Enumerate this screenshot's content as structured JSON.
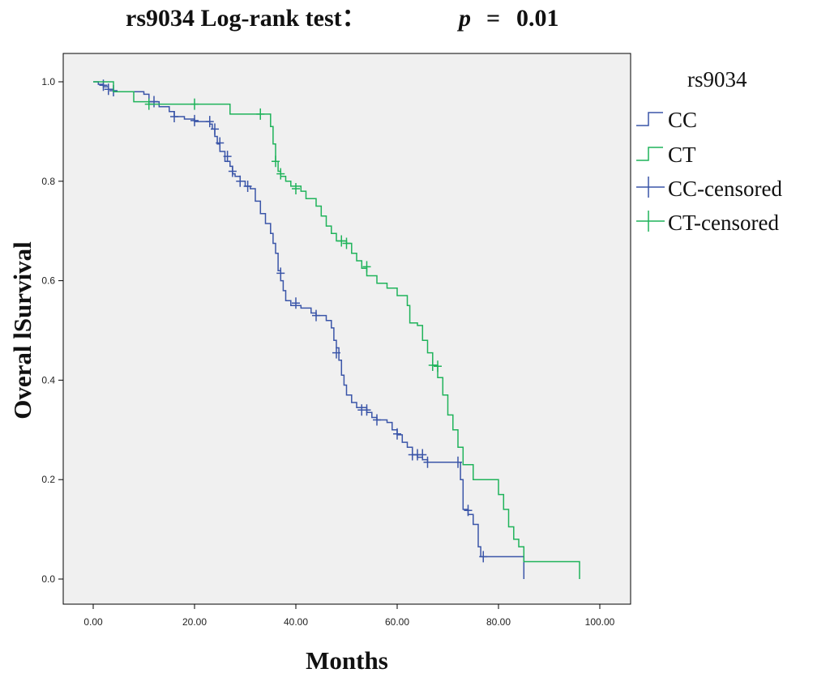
{
  "title": {
    "main": "rs9034 Log-rank test：",
    "p_symbol": "p",
    "p_equals": "=",
    "p_value": "0.01"
  },
  "chart_data": {
    "type": "line",
    "subtype": "kaplan-meier step",
    "xlabel": "Months",
    "ylabel": "Overal lSurvival",
    "xlim": [
      0,
      100
    ],
    "ylim": [
      0,
      1
    ],
    "x_ticks": [
      "0.00",
      "20.00",
      "40.00",
      "60.00",
      "80.00",
      "100.00"
    ],
    "y_ticks": [
      "0.0",
      "0.2",
      "0.4",
      "0.6",
      "0.8",
      "1.0"
    ],
    "grid": false,
    "legend_position": "right",
    "legend_title": "rs9034",
    "legend": [
      "CC",
      "CT",
      "CC-censored",
      "CT-censored"
    ],
    "colors": {
      "CC": "#3a55a8",
      "CT": "#1fb35a",
      "plot_bg": "#f0f0f0"
    },
    "series": [
      {
        "name": "CC",
        "steps": [
          [
            0,
            1.0
          ],
          [
            1,
            0.995
          ],
          [
            2,
            0.99
          ],
          [
            3,
            0.985
          ],
          [
            4,
            0.98
          ],
          [
            6,
            0.98
          ],
          [
            8,
            0.98
          ],
          [
            10,
            0.975
          ],
          [
            11,
            0.96
          ],
          [
            13,
            0.95
          ],
          [
            15,
            0.94
          ],
          [
            16,
            0.93
          ],
          [
            18,
            0.925
          ],
          [
            20,
            0.92
          ],
          [
            22,
            0.92
          ],
          [
            23,
            0.915
          ],
          [
            23.5,
            0.905
          ],
          [
            24,
            0.89
          ],
          [
            24.5,
            0.875
          ],
          [
            25,
            0.86
          ],
          [
            26,
            0.84
          ],
          [
            27,
            0.83
          ],
          [
            27.5,
            0.815
          ],
          [
            28,
            0.81
          ],
          [
            29,
            0.8
          ],
          [
            30,
            0.79
          ],
          [
            31,
            0.785
          ],
          [
            32,
            0.76
          ],
          [
            33,
            0.735
          ],
          [
            34,
            0.715
          ],
          [
            35,
            0.695
          ],
          [
            35.5,
            0.675
          ],
          [
            36,
            0.655
          ],
          [
            36.5,
            0.62
          ],
          [
            37,
            0.6
          ],
          [
            37.5,
            0.58
          ],
          [
            38,
            0.56
          ],
          [
            39,
            0.55
          ],
          [
            41,
            0.545
          ],
          [
            43,
            0.535
          ],
          [
            44,
            0.53
          ],
          [
            46,
            0.52
          ],
          [
            47,
            0.505
          ],
          [
            47.5,
            0.48
          ],
          [
            48,
            0.465
          ],
          [
            48.5,
            0.44
          ],
          [
            49,
            0.41
          ],
          [
            49.5,
            0.39
          ],
          [
            50,
            0.37
          ],
          [
            51,
            0.355
          ],
          [
            52,
            0.345
          ],
          [
            54,
            0.335
          ],
          [
            55,
            0.325
          ],
          [
            56,
            0.32
          ],
          [
            58,
            0.315
          ],
          [
            59,
            0.3
          ],
          [
            60,
            0.29
          ],
          [
            61,
            0.275
          ],
          [
            62,
            0.265
          ],
          [
            63,
            0.25
          ],
          [
            64,
            0.245
          ],
          [
            65,
            0.24
          ],
          [
            66,
            0.235
          ],
          [
            72,
            0.235
          ],
          [
            72.5,
            0.2
          ],
          [
            73,
            0.14
          ],
          [
            74,
            0.13
          ],
          [
            75,
            0.11
          ],
          [
            76,
            0.065
          ],
          [
            76.5,
            0.045
          ],
          [
            85,
            0.045
          ],
          [
            85,
            0.0
          ]
        ],
        "censored": [
          [
            2,
            0.993
          ],
          [
            3,
            0.985
          ],
          [
            4,
            0.982
          ],
          [
            12,
            0.96
          ],
          [
            16,
            0.93
          ],
          [
            20,
            0.922
          ],
          [
            23,
            0.92
          ],
          [
            24,
            0.905
          ],
          [
            25,
            0.877
          ],
          [
            26.5,
            0.85
          ],
          [
            27.5,
            0.82
          ],
          [
            29,
            0.8
          ],
          [
            30.5,
            0.79
          ],
          [
            37,
            0.615
          ],
          [
            40,
            0.555
          ],
          [
            44,
            0.53
          ],
          [
            48,
            0.455
          ],
          [
            53,
            0.34
          ],
          [
            54,
            0.34
          ],
          [
            56,
            0.32
          ],
          [
            60,
            0.292
          ],
          [
            63,
            0.25
          ],
          [
            64,
            0.25
          ],
          [
            65,
            0.25
          ],
          [
            66,
            0.235
          ],
          [
            72,
            0.235
          ],
          [
            74,
            0.138
          ],
          [
            77,
            0.045
          ]
        ]
      },
      {
        "name": "CT",
        "steps": [
          [
            0,
            1.0
          ],
          [
            4,
            1.0
          ],
          [
            4,
            0.98
          ],
          [
            8,
            0.98
          ],
          [
            8,
            0.96
          ],
          [
            11,
            0.955
          ],
          [
            27,
            0.955
          ],
          [
            27,
            0.935
          ],
          [
            34,
            0.935
          ],
          [
            35,
            0.91
          ],
          [
            35.5,
            0.875
          ],
          [
            36,
            0.84
          ],
          [
            36.5,
            0.82
          ],
          [
            37,
            0.81
          ],
          [
            38,
            0.8
          ],
          [
            39,
            0.79
          ],
          [
            41,
            0.78
          ],
          [
            42,
            0.765
          ],
          [
            44,
            0.75
          ],
          [
            45,
            0.73
          ],
          [
            46,
            0.71
          ],
          [
            47,
            0.695
          ],
          [
            48,
            0.68
          ],
          [
            50,
            0.675
          ],
          [
            51,
            0.655
          ],
          [
            52,
            0.64
          ],
          [
            53,
            0.625
          ],
          [
            54,
            0.61
          ],
          [
            56,
            0.595
          ],
          [
            58,
            0.585
          ],
          [
            60,
            0.57
          ],
          [
            62,
            0.55
          ],
          [
            62.5,
            0.515
          ],
          [
            64,
            0.51
          ],
          [
            65,
            0.48
          ],
          [
            66,
            0.455
          ],
          [
            67,
            0.43
          ],
          [
            68,
            0.405
          ],
          [
            69,
            0.37
          ],
          [
            70,
            0.33
          ],
          [
            71,
            0.3
          ],
          [
            72,
            0.265
          ],
          [
            73,
            0.23
          ],
          [
            75,
            0.2
          ],
          [
            80,
            0.2
          ],
          [
            80,
            0.17
          ],
          [
            81,
            0.14
          ],
          [
            82,
            0.105
          ],
          [
            83,
            0.08
          ],
          [
            84,
            0.065
          ],
          [
            85,
            0.035
          ],
          [
            96,
            0.035
          ],
          [
            96,
            0.0
          ]
        ],
        "censored": [
          [
            11,
            0.955
          ],
          [
            20,
            0.955
          ],
          [
            33,
            0.935
          ],
          [
            36,
            0.84
          ],
          [
            37,
            0.815
          ],
          [
            40,
            0.785
          ],
          [
            49,
            0.68
          ],
          [
            50,
            0.675
          ],
          [
            54,
            0.628
          ],
          [
            67,
            0.43
          ],
          [
            68,
            0.428
          ]
        ]
      }
    ]
  }
}
